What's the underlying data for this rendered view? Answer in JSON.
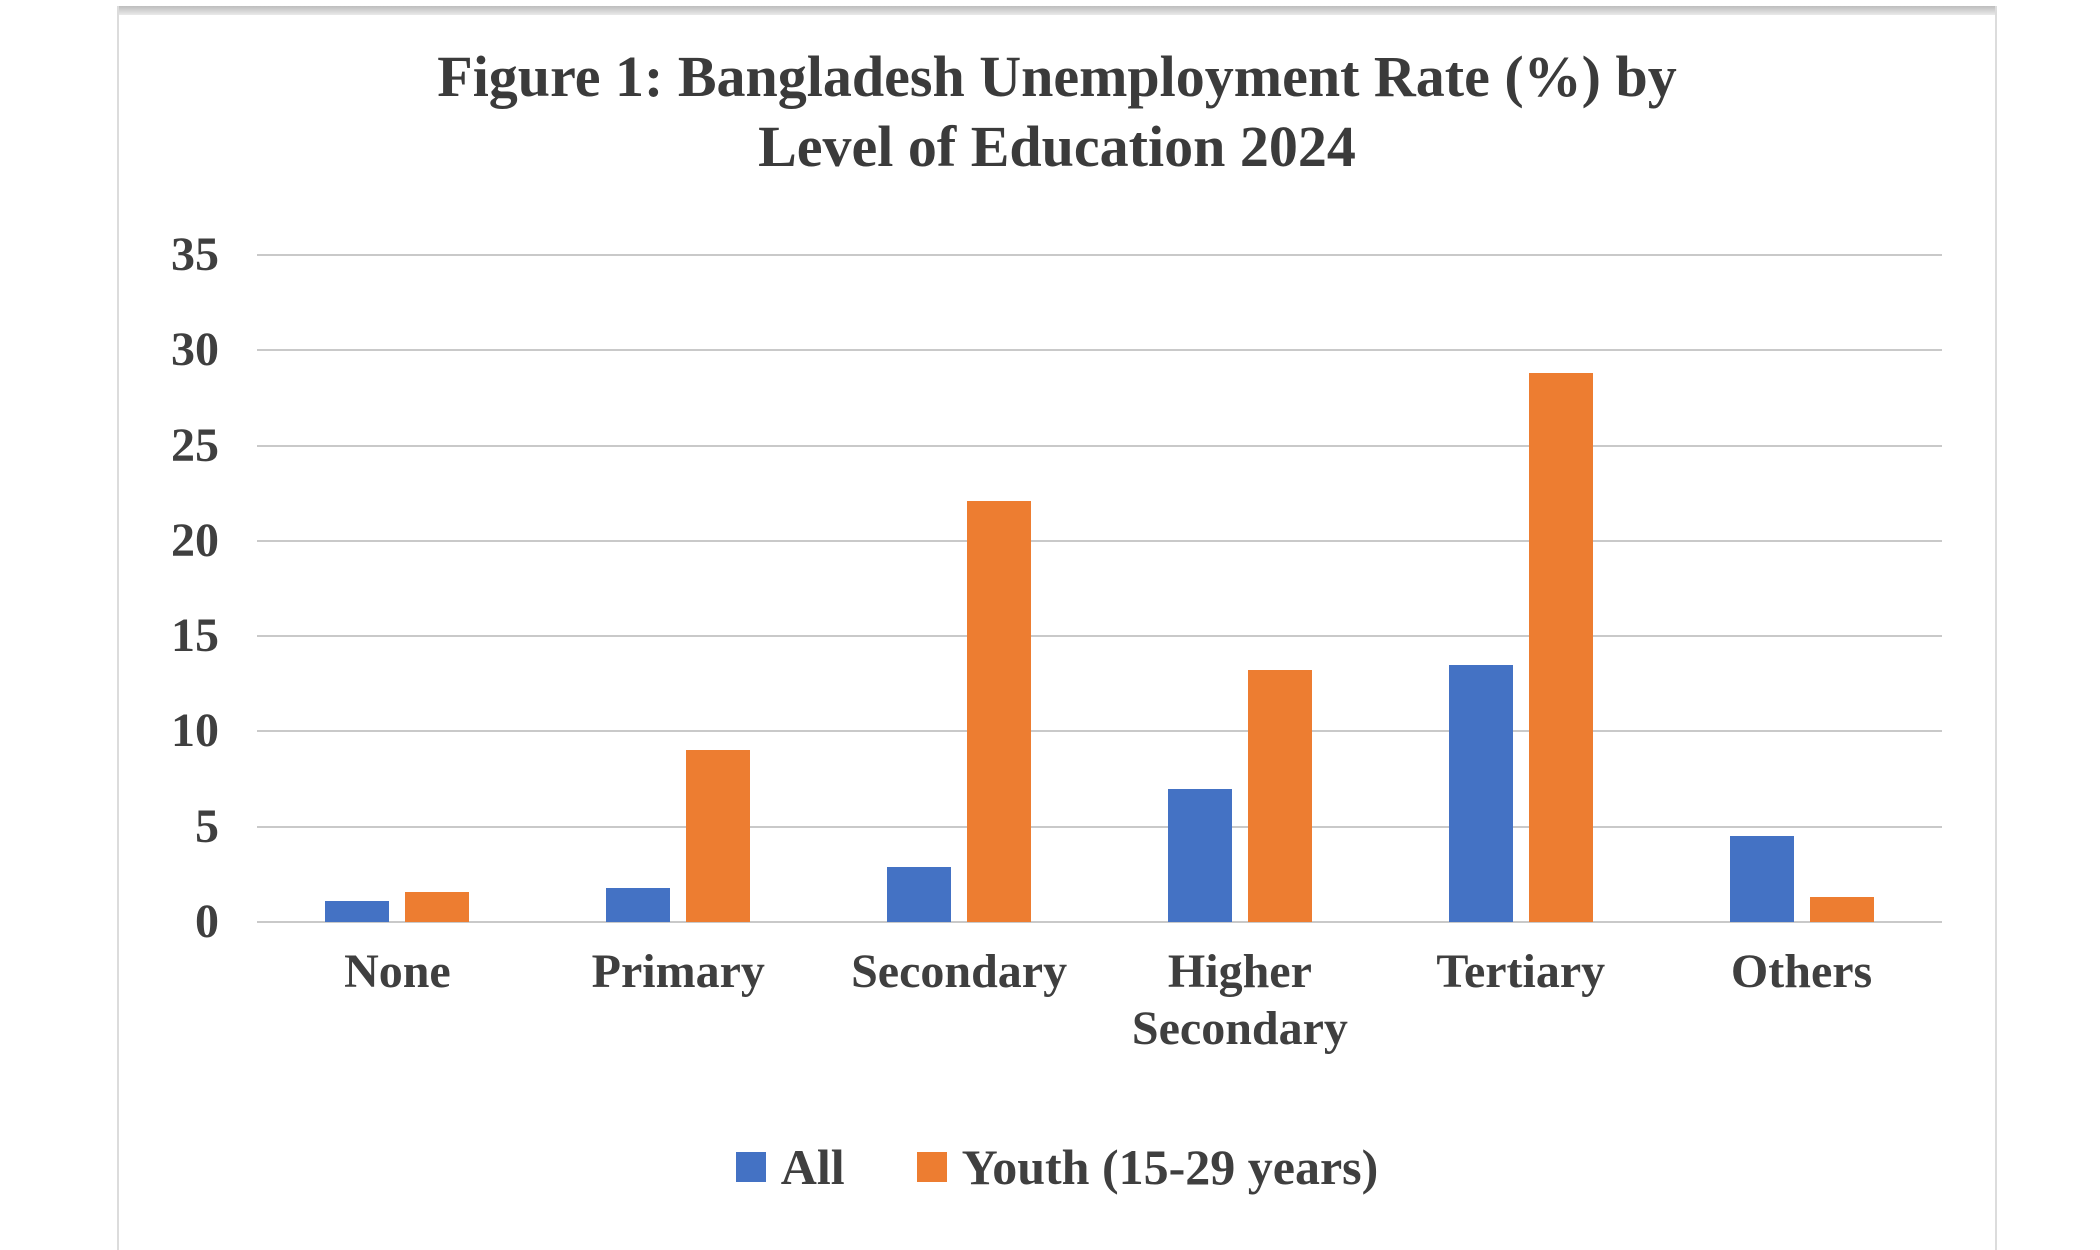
{
  "figure": {
    "title_line1": "Figure 1: Bangladesh Unemployment Rate (%) by",
    "title_line2": "Level of Education 2024"
  },
  "chart_data": {
    "type": "bar",
    "title": "Figure 1: Bangladesh Unemployment Rate (%) by Level of Education 2024",
    "categories": [
      "None",
      "Primary",
      "Secondary",
      "Higher Secondary",
      "Tertiary",
      "Others"
    ],
    "series": [
      {
        "name": "All",
        "color": "#4472C4",
        "values": [
          1.1,
          1.8,
          2.9,
          7.0,
          13.5,
          4.5
        ]
      },
      {
        "name": "Youth (15-29 years)",
        "color": "#ED7D31",
        "values": [
          1.6,
          9.0,
          22.1,
          13.2,
          28.8,
          1.3
        ]
      }
    ],
    "xlabel": "",
    "ylabel": "",
    "ylim": [
      0,
      35
    ],
    "yticks": [
      0,
      5,
      10,
      15,
      20,
      25,
      30,
      35
    ],
    "grid": true,
    "gridline_color": "#c9c9c9",
    "legend_position": "bottom"
  },
  "legend": {
    "items": [
      {
        "label": "All",
        "color": "#4472C4"
      },
      {
        "label": "Youth (15-29 years)",
        "color": "#ED7D31"
      }
    ]
  }
}
